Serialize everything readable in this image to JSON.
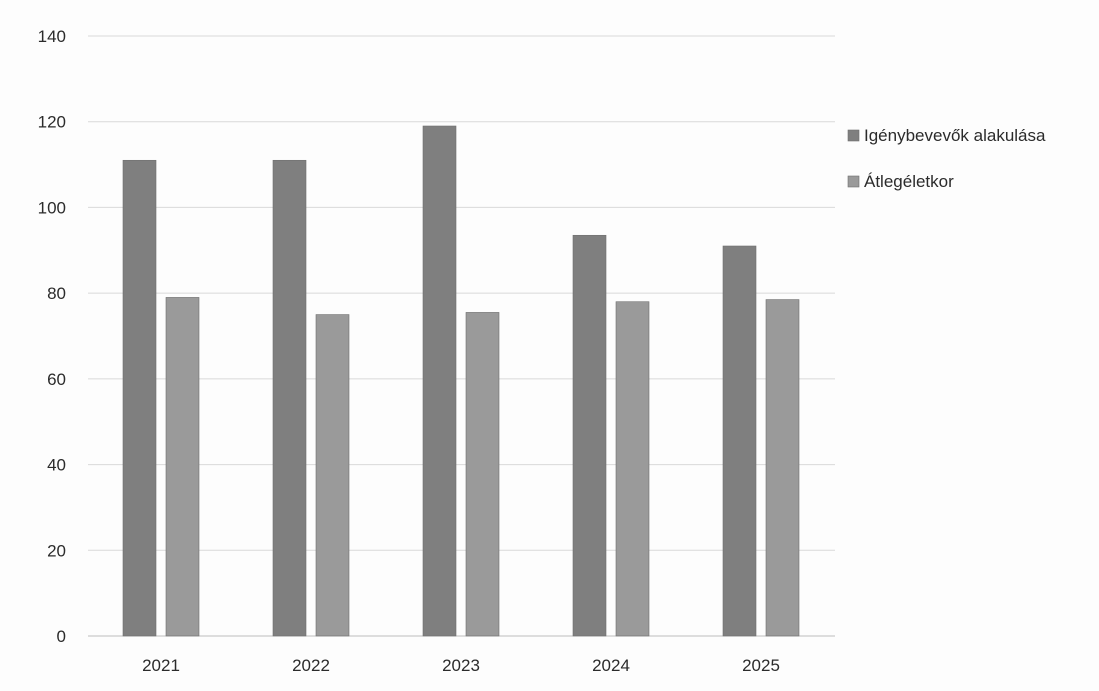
{
  "chart_data": {
    "type": "bar",
    "categories": [
      "2021",
      "2022",
      "2023",
      "2024",
      "2025"
    ],
    "series": [
      {
        "name": "Igénybevevők alakulása",
        "values": [
          111,
          111,
          119,
          93.5,
          91
        ],
        "color": "#7f7f7f"
      },
      {
        "name": "Átlegéletkor",
        "values": [
          79,
          75,
          75.5,
          78,
          78.5
        ],
        "color": "#9a9a9a"
      }
    ],
    "yticks": [
      0,
      20,
      40,
      60,
      80,
      100,
      120,
      140
    ],
    "ylim": [
      0,
      140
    ],
    "grid": true,
    "legend": "right",
    "title": "",
    "xlabel": "",
    "ylabel": ""
  }
}
